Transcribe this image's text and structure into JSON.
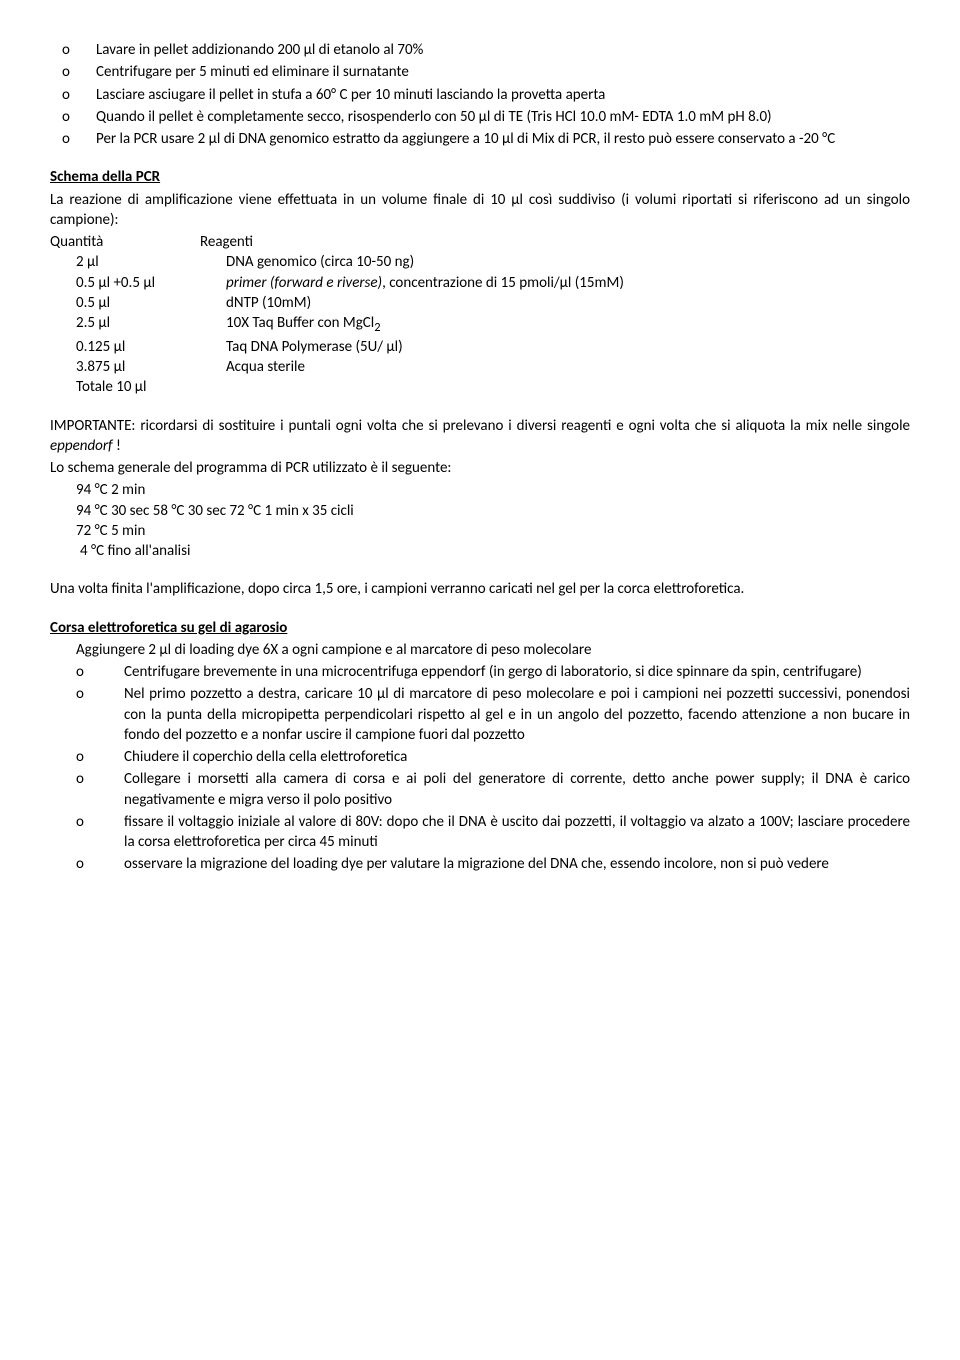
{
  "topList": [
    "Lavare in pellet addizionando 200 µl di etanolo al 70%",
    "Centrifugare per 5 minuti ed eliminare il surnatante",
    "Lasciare asciugare il pellet in stufa a 60° C per 10 minuti lasciando la provetta aperta",
    "Quando il pellet è completamente secco, risospenderlo con 50  µl di TE (Tris HCl 10.0 mM- EDTA 1.0 mM pH 8.0)",
    "Per la PCR usare 2 µl di DNA genomico estratto da aggiungere a 10 µl di Mix di PCR, il resto può essere conservato a -20 °C"
  ],
  "schemaTitle": "Schema della PCR",
  "schemaIntro": "La reazione di amplificazione viene effettuata in un volume finale di 10 µl così suddiviso (i volumi riportati si riferiscono ad un singolo campione):",
  "tableHeaderQty": "Quantità",
  "tableHeaderReagent": "Reagenti",
  "rows": {
    "r0": {
      "q": "2 µl",
      "r": "DNA genomico (circa 10-50 ng)"
    },
    "r1": {
      "q": "0.5 µl +0.5 µl"
    },
    "r1_prefix": "primer (forward e riverse)",
    "r1_suffix": ", concentrazione di 15 pmoli/µl (15mM)",
    "r2": {
      "q": "0.5 µl",
      "r": "dNTP (10mM)"
    },
    "r3": {
      "q": "2.5 µl"
    },
    "r3_pre": "10X Taq Buffer con MgCl",
    "r3_sub": "2",
    "r4": {
      "q": "0.125 µl",
      "r": "Taq DNA Polymerase (5U/ µl)"
    },
    "r5": {
      "q": "3.875 µl",
      "r": "Acqua sterile"
    },
    "r6": {
      "q": "Totale 10 µl",
      "r": ""
    }
  },
  "important_pre": "IMPORTANTE: ricordarsi di sostituire i puntali ogni volta che si prelevano i diversi reagenti e ogni volta che si aliquota la mix nelle singole ",
  "important_ital": "eppendorf",
  "important_post": " !",
  "programIntro": "Lo schema generale del programma di PCR utilizzato è il seguente:",
  "pcr": {
    "l1": "94 °C  2 min",
    "l2": "94 °C  30 sec        58 °C 30 sec     72 °C 1 min     x 35 cicli",
    "l3": "72 °C  5 min",
    "l4": "4 °C  fino all'analisi"
  },
  "afterAmp": "Una volta finita l'amplificazione, dopo circa 1,5 ore, i campioni verranno caricati nel gel per la corca elettroforetica.",
  "gelTitle": "Corsa elettroforetica su gel di agarosio",
  "gelIntro": "Aggiungere 2 µl di loading dye 6X a ogni campione e al marcatore di peso molecolare",
  "gelList": [
    "Centrifugare brevemente in una microcentrifuga eppendorf (in gergo di laboratorio, si dice spinnare da spin, centrifugare)",
    "Nel primo pozzetto a destra, caricare 10 µl di marcatore di peso molecolare e poi i campioni nei pozzetti successivi, ponendosi con la punta della micropipetta perpendicolari rispetto al gel e in un angolo del pozzetto, facendo attenzione a non bucare in fondo del pozzetto e a nonfar uscire il campione fuori dal pozzetto",
    "Chiudere il coperchio della cella elettroforetica",
    "Collegare i morsetti alla camera di corsa e ai poli del generatore di corrente, detto anche power supply; il DNA è carico negativamente e migra verso il polo positivo",
    "fissare il voltaggio iniziale al valore di 80V: dopo che il DNA è uscito dai pozzetti, il voltaggio va alzato a 100V; lasciare procedere la corsa elettroforetica per circa 45 minuti",
    "osservare la migrazione del loading dye per valutare la migrazione del DNA che, essendo incolore, non si può vedere"
  ],
  "bulletChar": "o"
}
